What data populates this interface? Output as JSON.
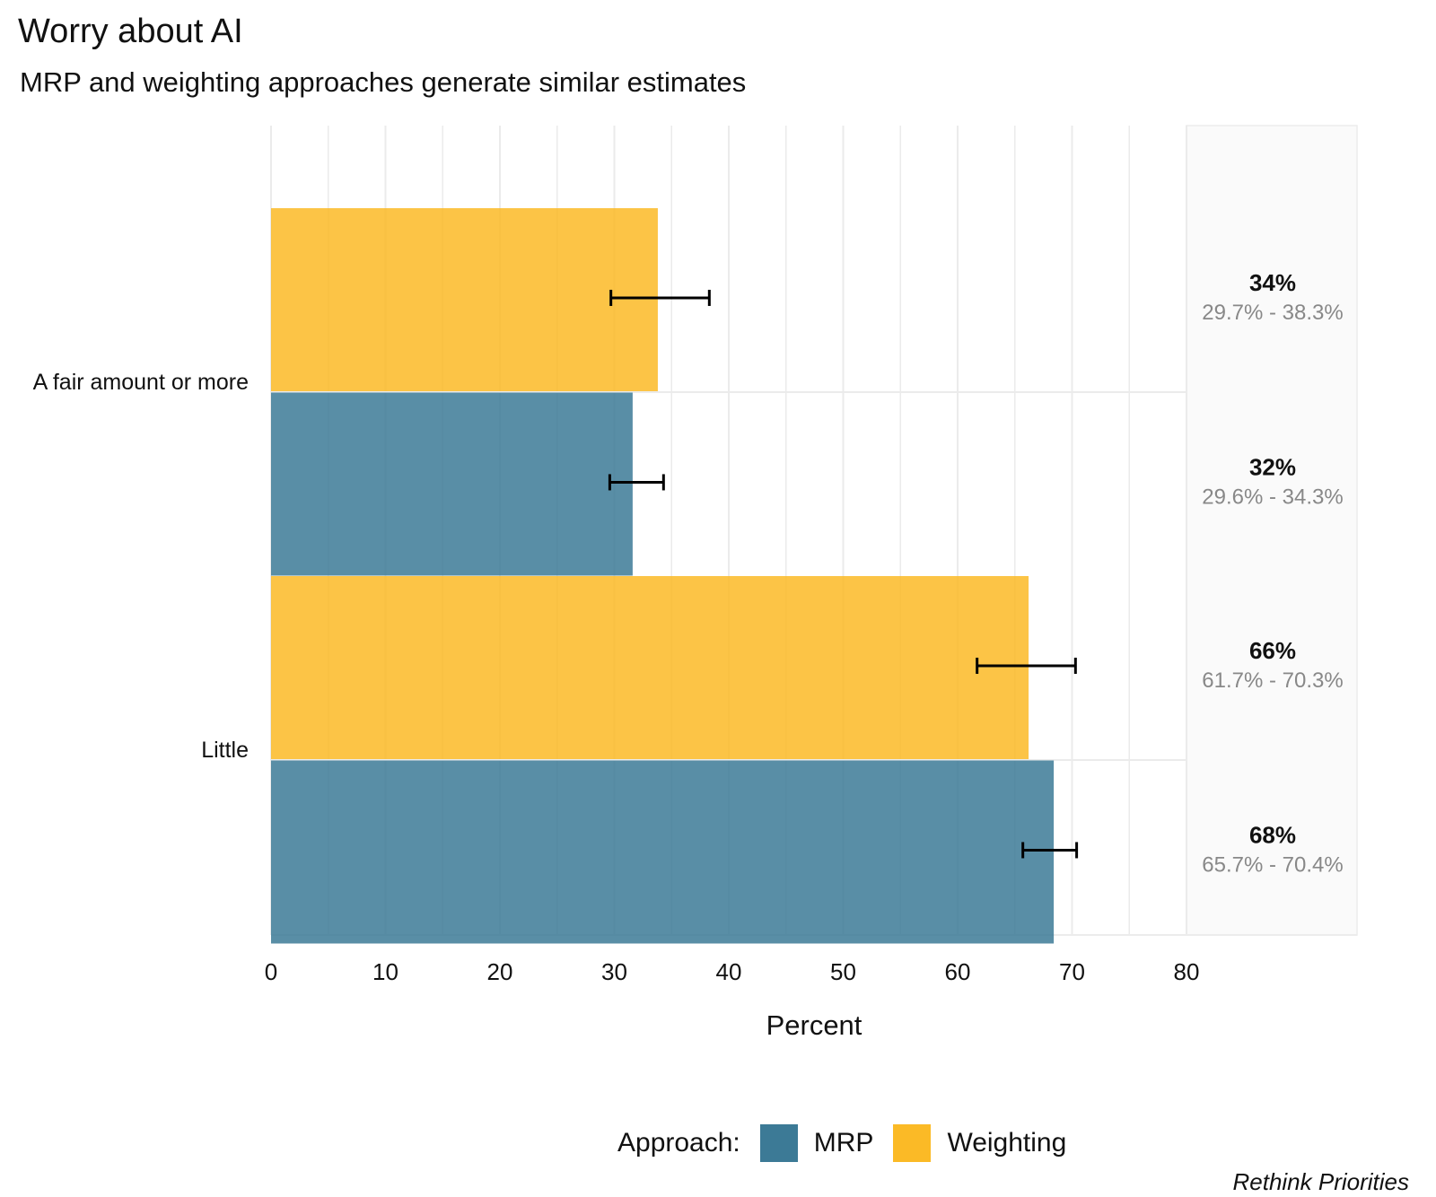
{
  "chart_data": {
    "type": "bar",
    "orientation": "horizontal",
    "title": "Worry about AI",
    "subtitle": "MRP and weighting approaches generate similar estimates",
    "xlabel": "Percent",
    "ylabel": "",
    "xlim": [
      0,
      80
    ],
    "xticks": [
      0,
      10,
      20,
      30,
      40,
      50,
      60,
      70,
      80
    ],
    "categories": [
      "A fair amount or more",
      "Little"
    ],
    "series": [
      {
        "name": "Weighting",
        "color": "#FBBA26",
        "values": [
          33.8,
          66.2
        ],
        "ci_low": [
          29.7,
          61.7
        ],
        "ci_high": [
          38.3,
          70.3
        ],
        "labels": [
          "34%",
          "66%"
        ],
        "ci_labels": [
          "29.7% - 38.3%",
          "61.7% - 70.3%"
        ]
      },
      {
        "name": "MRP",
        "color": "#3C7A96",
        "values": [
          31.6,
          68.4
        ],
        "ci_low": [
          29.6,
          65.7
        ],
        "ci_high": [
          34.3,
          70.4
        ],
        "labels": [
          "32%",
          "68%"
        ],
        "ci_labels": [
          "29.6% - 34.3%",
          "65.7% - 70.4%"
        ]
      }
    ],
    "legend": {
      "title": "Approach:",
      "position": "bottom",
      "items": [
        {
          "name": "MRP",
          "color": "#3C7A96"
        },
        {
          "name": "Weighting",
          "color": "#FBBA26"
        }
      ]
    },
    "caption": "Rethink Priorities",
    "grid": true
  }
}
